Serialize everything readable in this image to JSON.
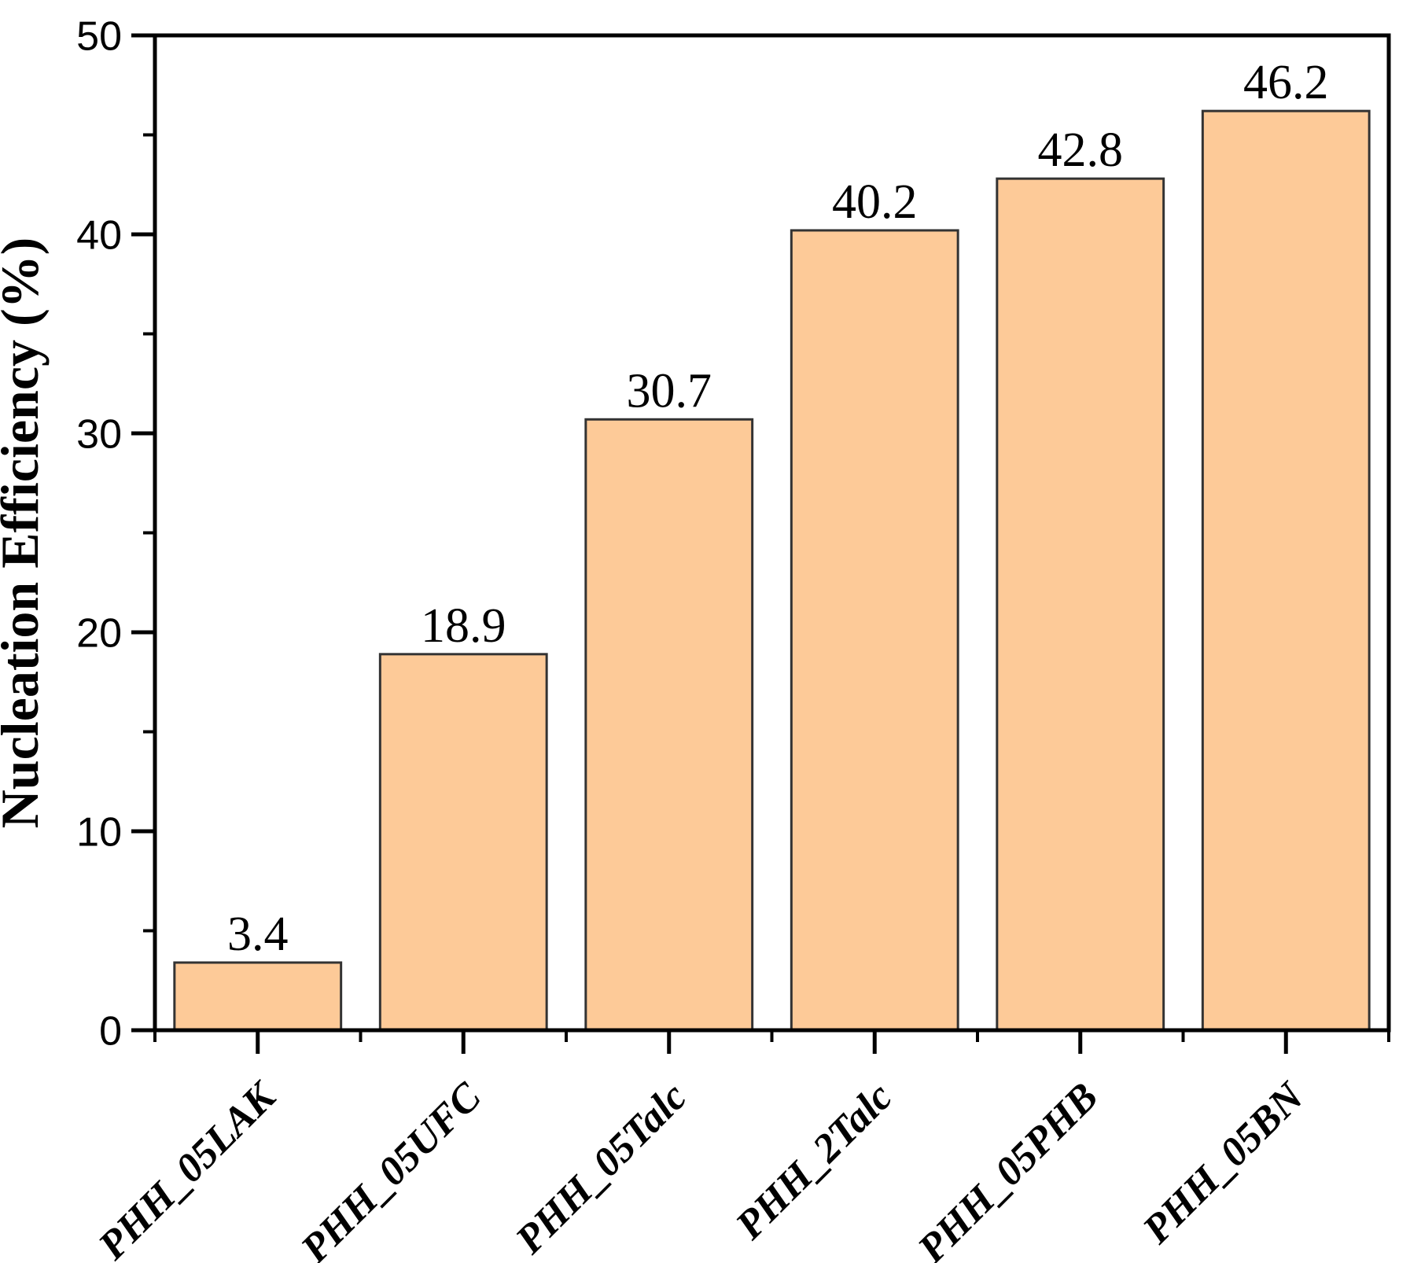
{
  "figure": {
    "background": "#ffffff"
  },
  "chart_data": {
    "type": "bar",
    "categories": [
      "PHH_05LAK",
      "PHH_05UFC",
      "PHH_05Talc",
      "PHH_2Talc",
      "PHH_05PHB",
      "PHH_05BN"
    ],
    "values": [
      3.4,
      18.9,
      30.7,
      40.2,
      42.8,
      46.2
    ],
    "bar_value_labels": [
      "3.4",
      "18.9",
      "30.7",
      "40.2",
      "42.8",
      "46.2"
    ],
    "xlabel": "",
    "ylabel": "Nucleation Efficiency (%)",
    "ylim": [
      0,
      50
    ],
    "ytick_values": [
      0,
      10,
      20,
      30,
      40,
      50
    ],
    "ytick_labels": [
      "0",
      "10",
      "20",
      "30",
      "40",
      "50"
    ],
    "y_minor_tick_step": 5,
    "x_tick_label_rotation_deg": 45,
    "grid": false,
    "legend": false,
    "colors": {
      "bar_fill": "#FDCA98",
      "bar_edge": "#333333",
      "axis": "#000000",
      "text": "#000000"
    }
  }
}
